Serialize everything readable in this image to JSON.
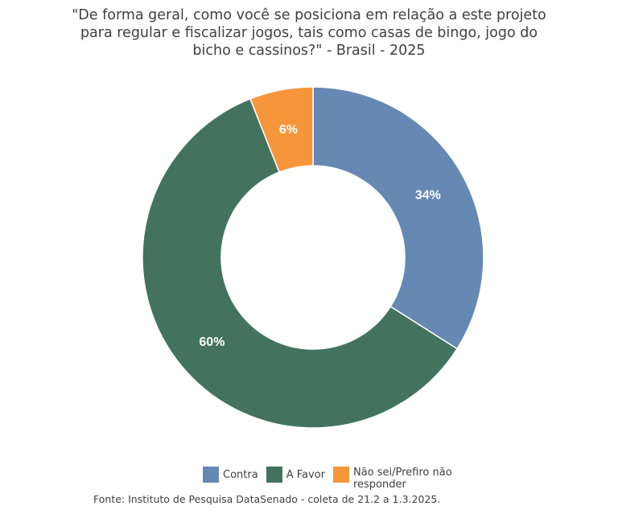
{
  "title": "\"De forma geral, como você se posiciona em relação a este projeto para regular e fiscalizar jogos, tais como casas de bingo, jogo do bicho e cassinos?\" - Brasil - 2025",
  "source": "Fonte: Instituto de Pesquisa DataSenado - coleta de 21.2 a 1.3.2025.",
  "chart_data": {
    "type": "pie",
    "donut": true,
    "title": "\"De forma geral, como você se posiciona em relação a este projeto para regular e fiscalizar jogos, tais como casas de bingo, jogo do bicho e cassinos?\" - Brasil - 2025",
    "categories": [
      "Contra",
      "A Favor",
      "Não sei/Prefiro não responder"
    ],
    "values": [
      34,
      60,
      6
    ],
    "labels": [
      "34%",
      "60%",
      "6%"
    ],
    "colors": [
      "#6589b2",
      "#43735f",
      "#f7953a"
    ],
    "legend_position": "bottom"
  }
}
